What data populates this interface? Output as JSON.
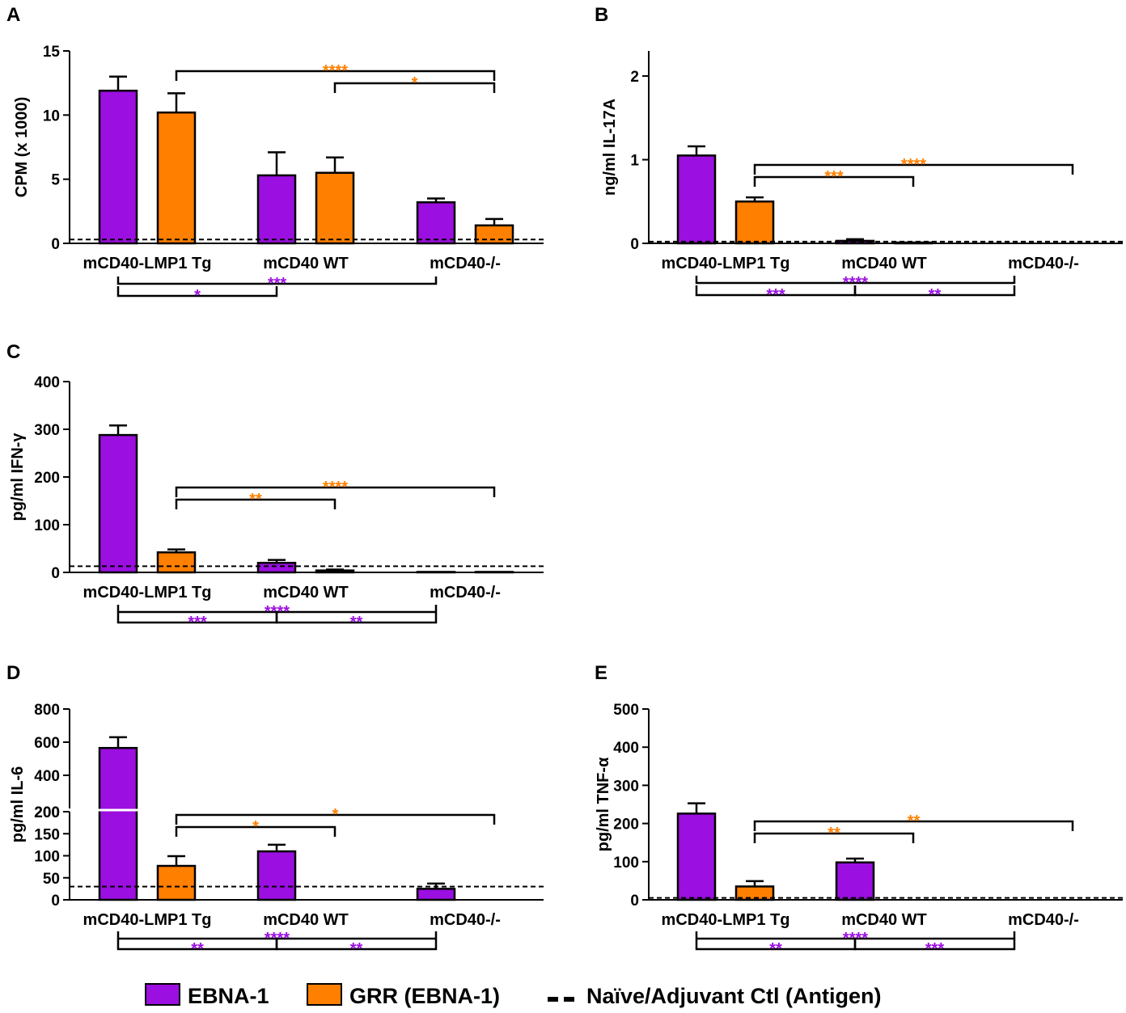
{
  "colors": {
    "ebna": "#9b0fe0",
    "grr": "#ff7f00",
    "axis": "#000000"
  },
  "legend": {
    "ebna_label": "EBNA-1",
    "grr_label": "GRR (EBNA-1)",
    "control_label": "Naïve/Adjuvant Ctl  (Antigen)"
  },
  "chart_data": [
    {
      "panel": "A",
      "type": "bar",
      "ylabel": "CPM (x 1000)",
      "ylim": [
        0,
        15
      ],
      "yticks": [
        0,
        5,
        10,
        15
      ],
      "categories": [
        "mCD40-LMP1 Tg",
        "mCD40 WT",
        "mCD40-/-"
      ],
      "series": [
        {
          "name": "EBNA-1",
          "values": [
            11.9,
            5.3,
            3.2
          ],
          "errors": [
            1.1,
            1.8,
            0.3
          ]
        },
        {
          "name": "GRR (EBNA-1)",
          "values": [
            10.2,
            5.5,
            1.4
          ],
          "errors": [
            1.5,
            1.2,
            0.5
          ]
        }
      ],
      "control_line": 0.3,
      "sig_top": [
        {
          "from": [
            0,
            1
          ],
          "to": [
            2,
            1
          ],
          "label": "****",
          "color": "grr"
        },
        {
          "from": [
            1,
            1
          ],
          "to": [
            2,
            1
          ],
          "label": "*",
          "color": "grr"
        }
      ],
      "sig_bottom": [
        {
          "from": [
            0,
            0
          ],
          "to": [
            2,
            0
          ],
          "label": "***",
          "color": "ebna"
        },
        {
          "from": [
            0,
            0
          ],
          "to": [
            1,
            0
          ],
          "label": "*",
          "color": "ebna"
        }
      ]
    },
    {
      "panel": "B",
      "type": "bar",
      "ylabel": "ng/ml  IL-17A",
      "ylim": [
        0,
        2.3
      ],
      "yticks": [
        0,
        1,
        2
      ],
      "categories": [
        "mCD40-LMP1 Tg",
        "mCD40 WT",
        "mCD40-/-"
      ],
      "series": [
        {
          "name": "EBNA-1",
          "values": [
            1.05,
            0.03,
            0.0
          ],
          "errors": [
            0.11,
            0.02,
            0.0
          ]
        },
        {
          "name": "GRR (EBNA-1)",
          "values": [
            0.5,
            0.01,
            0.0
          ],
          "errors": [
            0.05,
            0.0,
            0.0
          ]
        }
      ],
      "control_line": 0.02,
      "sig_top": [
        {
          "from": [
            0,
            1
          ],
          "to": [
            2,
            1
          ],
          "label": "****",
          "color": "grr"
        },
        {
          "from": [
            0,
            1
          ],
          "to": [
            1,
            1
          ],
          "label": "***",
          "color": "grr"
        }
      ],
      "sig_bottom": [
        {
          "from": [
            0,
            0
          ],
          "to": [
            2,
            0
          ],
          "label": "****",
          "color": "ebna"
        },
        {
          "from": [
            0,
            0
          ],
          "to": [
            1,
            0
          ],
          "label": "***",
          "color": "ebna"
        },
        {
          "from": [
            1,
            0
          ],
          "to": [
            2,
            0
          ],
          "label": "**",
          "color": "ebna"
        }
      ]
    },
    {
      "panel": "C",
      "type": "bar",
      "ylabel": "pg/ml IFN-γ",
      "ylim": [
        0,
        400
      ],
      "yticks": [
        0,
        100,
        200,
        300,
        400
      ],
      "categories": [
        "mCD40-LMP1 Tg",
        "mCD40 WT",
        "mCD40-/-"
      ],
      "series": [
        {
          "name": "EBNA-1",
          "values": [
            288,
            20,
            1
          ],
          "errors": [
            20,
            6,
            0
          ]
        },
        {
          "name": "GRR (EBNA-1)",
          "values": [
            42,
            4,
            1
          ],
          "errors": [
            6,
            2,
            0
          ]
        }
      ],
      "control_line": 13,
      "sig_top": [
        {
          "from": [
            0,
            1
          ],
          "to": [
            2,
            1
          ],
          "label": "****",
          "color": "grr"
        },
        {
          "from": [
            0,
            1
          ],
          "to": [
            1,
            1
          ],
          "label": "**",
          "color": "grr"
        }
      ],
      "sig_bottom": [
        {
          "from": [
            0,
            0
          ],
          "to": [
            2,
            0
          ],
          "label": "****",
          "color": "ebna"
        },
        {
          "from": [
            0,
            0
          ],
          "to": [
            1,
            0
          ],
          "label": "***",
          "color": "ebna"
        },
        {
          "from": [
            1,
            0
          ],
          "to": [
            2,
            0
          ],
          "label": "**",
          "color": "ebna"
        }
      ]
    },
    {
      "panel": "D",
      "type": "bar",
      "broken_axis": true,
      "ylabel": "pg/ml  IL-6",
      "ylim_lower": [
        0,
        200
      ],
      "yticks_lower": [
        0,
        50,
        100,
        150,
        200
      ],
      "ylim_upper": [
        200,
        800
      ],
      "yticks_upper": [
        200,
        400,
        600,
        800
      ],
      "categories": [
        "mCD40-LMP1 Tg",
        "mCD40 WT",
        "mCD40-/-"
      ],
      "series": [
        {
          "name": "EBNA-1",
          "values": [
            565,
            110,
            25
          ],
          "errors": [
            65,
            15,
            12
          ]
        },
        {
          "name": "GRR (EBNA-1)",
          "values": [
            77,
            0,
            0
          ],
          "errors": [
            22,
            0,
            0
          ]
        }
      ],
      "control_line": 30,
      "sig_top": [
        {
          "from": [
            0,
            1
          ],
          "to": [
            2,
            1
          ],
          "label": "*",
          "color": "grr"
        },
        {
          "from": [
            0,
            1
          ],
          "to": [
            1,
            1
          ],
          "label": "*",
          "color": "grr"
        }
      ],
      "sig_bottom": [
        {
          "from": [
            0,
            0
          ],
          "to": [
            2,
            0
          ],
          "label": "****",
          "color": "ebna"
        },
        {
          "from": [
            0,
            0
          ],
          "to": [
            1,
            0
          ],
          "label": "**",
          "color": "ebna"
        },
        {
          "from": [
            1,
            0
          ],
          "to": [
            2,
            0
          ],
          "label": "**",
          "color": "ebna"
        }
      ]
    },
    {
      "panel": "E",
      "type": "bar",
      "ylabel": "pg/ml TNF-α",
      "ylim": [
        0,
        500
      ],
      "yticks": [
        0,
        100,
        200,
        300,
        400,
        500
      ],
      "categories": [
        "mCD40-LMP1 Tg",
        "mCD40 WT",
        "mCD40-/-"
      ],
      "series": [
        {
          "name": "EBNA-1",
          "values": [
            226,
            98,
            0
          ],
          "errors": [
            27,
            10,
            0
          ]
        },
        {
          "name": "GRR (EBNA-1)",
          "values": [
            35,
            0,
            0
          ],
          "errors": [
            14,
            0,
            0
          ]
        }
      ],
      "control_line": 5,
      "sig_top": [
        {
          "from": [
            0,
            1
          ],
          "to": [
            2,
            1
          ],
          "label": "**",
          "color": "grr"
        },
        {
          "from": [
            0,
            1
          ],
          "to": [
            1,
            1
          ],
          "label": "**",
          "color": "grr"
        }
      ],
      "sig_bottom": [
        {
          "from": [
            0,
            0
          ],
          "to": [
            2,
            0
          ],
          "label": "****",
          "color": "ebna"
        },
        {
          "from": [
            0,
            0
          ],
          "to": [
            1,
            0
          ],
          "label": "**",
          "color": "ebna"
        },
        {
          "from": [
            1,
            0
          ],
          "to": [
            2,
            0
          ],
          "label": "***",
          "color": "ebna"
        }
      ]
    }
  ]
}
